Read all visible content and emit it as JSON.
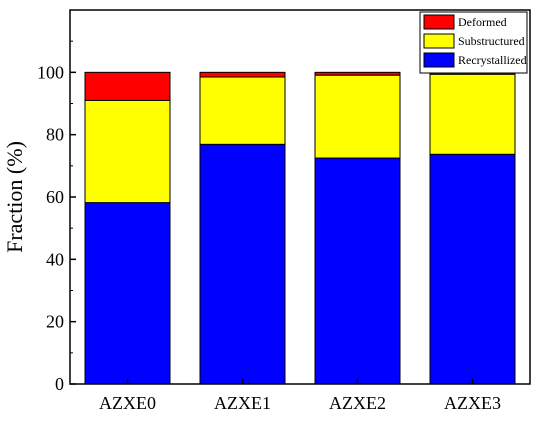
{
  "chart_data": {
    "type": "bar",
    "stacked": true,
    "categories": [
      "AZXE0",
      "AZXE1",
      "AZXE2",
      "AZXE3"
    ],
    "series": [
      {
        "name": "Recrystallized",
        "color": "#0000ff",
        "values": [
          58.2,
          76.9,
          72.5,
          73.7
        ]
      },
      {
        "name": "Substructured",
        "color": "#ffff00",
        "values": [
          32.8,
          21.6,
          26.6,
          25.7
        ]
      },
      {
        "name": "Deformed",
        "color": "#ff0000",
        "values": [
          9.0,
          1.5,
          0.9,
          0.6
        ]
      }
    ],
    "legend_order": [
      "Deformed",
      "Substructured",
      "Recrystallized"
    ],
    "title": "",
    "xlabel": "",
    "ylabel": "Fraction  (%)",
    "ylim": [
      0,
      120
    ],
    "yticks": [
      0,
      20,
      40,
      60,
      80,
      100
    ],
    "grid": false,
    "legend_position": "top-right"
  }
}
